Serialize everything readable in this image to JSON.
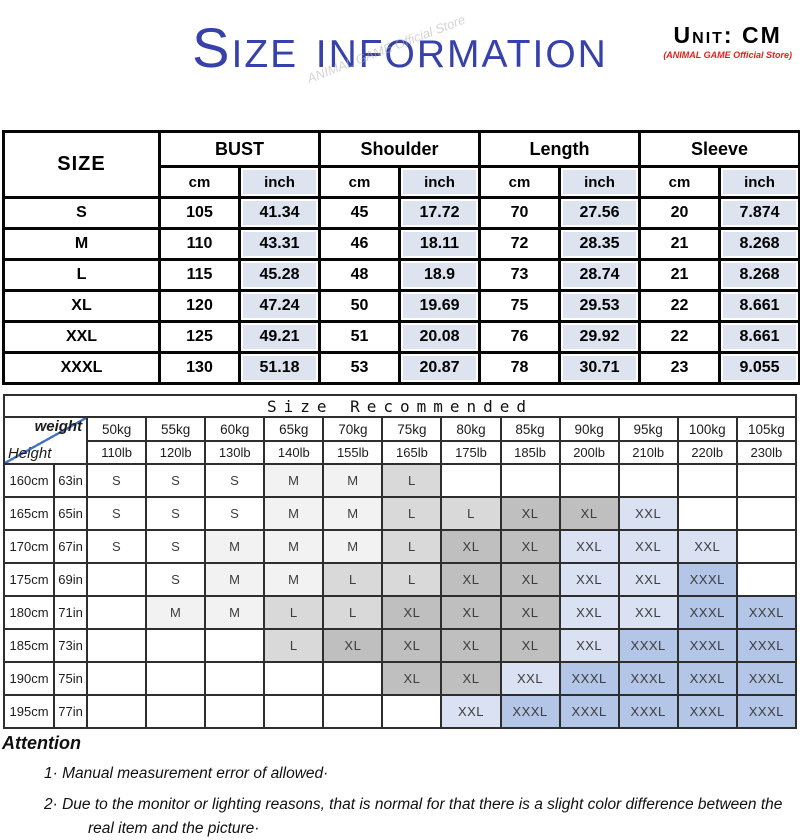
{
  "header": {
    "title": "Size information",
    "unit_label": "Unit: CM",
    "store_label": "(ANIMAL GAME Official Store)",
    "watermark": "ANIMAL GAME Official Store"
  },
  "colors": {
    "title_blue": "#3641a9",
    "store_red": "#e1201e",
    "inch_cell_bg": "#dde4ef",
    "diagonal_blue": "#4472c4"
  },
  "size_table": {
    "size_header": "SIZE",
    "col_groups": [
      "BUST",
      "Shoulder",
      "Length",
      "Sleeve"
    ],
    "unit_headers": [
      "cm",
      "inch"
    ],
    "rows": [
      {
        "size": "S",
        "values": [
          "105",
          "41.34",
          "45",
          "17.72",
          "70",
          "27.56",
          "20",
          "7.874"
        ]
      },
      {
        "size": "M",
        "values": [
          "110",
          "43.31",
          "46",
          "18.11",
          "72",
          "28.35",
          "21",
          "8.268"
        ]
      },
      {
        "size": "L",
        "values": [
          "115",
          "45.28",
          "48",
          "18.9",
          "73",
          "28.74",
          "21",
          "8.268"
        ]
      },
      {
        "size": "XL",
        "values": [
          "120",
          "47.24",
          "50",
          "19.69",
          "75",
          "29.53",
          "22",
          "8.661"
        ]
      },
      {
        "size": "XXL",
        "values": [
          "125",
          "49.21",
          "51",
          "20.08",
          "76",
          "29.92",
          "22",
          "8.661"
        ]
      },
      {
        "size": "XXXL",
        "values": [
          "130",
          "51.18",
          "53",
          "20.87",
          "78",
          "30.71",
          "23",
          "9.055"
        ]
      }
    ]
  },
  "recommend_table": {
    "title": "Size Recommended",
    "corner": {
      "top": "weight",
      "bottom": "Height"
    },
    "weights_kg": [
      "50kg",
      "55kg",
      "60kg",
      "65kg",
      "70kg",
      "75kg",
      "80kg",
      "85kg",
      "90kg",
      "95kg",
      "100kg",
      "105kg"
    ],
    "weights_lb": [
      "110lb",
      "120lb",
      "130lb",
      "140lb",
      "155lb",
      "165lb",
      "175lb",
      "185lb",
      "200lb",
      "210lb",
      "220lb",
      "230lb"
    ],
    "size_colors": {
      "S": "#ffffff",
      "M": "#f2f2f2",
      "L": "#d9d9d9",
      "XL": "#bfbfbf",
      "XXL": "#d9e1f2",
      "XXXL": "#b4c6e7",
      "empty": "#ffffff"
    },
    "rows": [
      {
        "cm": "160cm",
        "in": "63in",
        "cells": [
          "S",
          "S",
          "S",
          "M",
          "M",
          "L",
          "",
          "",
          "",
          "",
          "",
          ""
        ]
      },
      {
        "cm": "165cm",
        "in": "65in",
        "cells": [
          "S",
          "S",
          "S",
          "M",
          "M",
          "L",
          "L",
          "XL",
          "XL",
          "XXL",
          "",
          ""
        ]
      },
      {
        "cm": "170cm",
        "in": "67in",
        "cells": [
          "S",
          "S",
          "M",
          "M",
          "M",
          "L",
          "XL",
          "XL",
          "XXL",
          "XXL",
          "XXL",
          ""
        ]
      },
      {
        "cm": "175cm",
        "in": "69in",
        "cells": [
          "",
          "S",
          "M",
          "M",
          "L",
          "L",
          "XL",
          "XL",
          "XXL",
          "XXL",
          "XXXL",
          ""
        ]
      },
      {
        "cm": "180cm",
        "in": "71in",
        "cells": [
          "",
          "M",
          "M",
          "L",
          "L",
          "XL",
          "XL",
          "XL",
          "XXL",
          "XXL",
          "XXXL",
          "XXXL"
        ]
      },
      {
        "cm": "185cm",
        "in": "73in",
        "cells": [
          "",
          "",
          "",
          "L",
          "XL",
          "XL",
          "XL",
          "XL",
          "XXL",
          "XXXL",
          "XXXL",
          "XXXL"
        ]
      },
      {
        "cm": "190cm",
        "in": "75in",
        "cells": [
          "",
          "",
          "",
          "",
          "",
          "XL",
          "XL",
          "XXL",
          "XXXL",
          "XXXL",
          "XXXL",
          "XXXL"
        ]
      },
      {
        "cm": "195cm",
        "in": "77in",
        "cells": [
          "",
          "",
          "",
          "",
          "",
          "",
          "XXL",
          "XXXL",
          "XXXL",
          "XXXL",
          "XXXL",
          "XXXL"
        ]
      }
    ]
  },
  "attention": {
    "heading": "Attention",
    "line1": "1·  Manual measurement error of allowed·",
    "line2": "2·  Due to the monitor or lighting reasons, that is normal for that there is a slight color difference between the real item and the picture·"
  }
}
